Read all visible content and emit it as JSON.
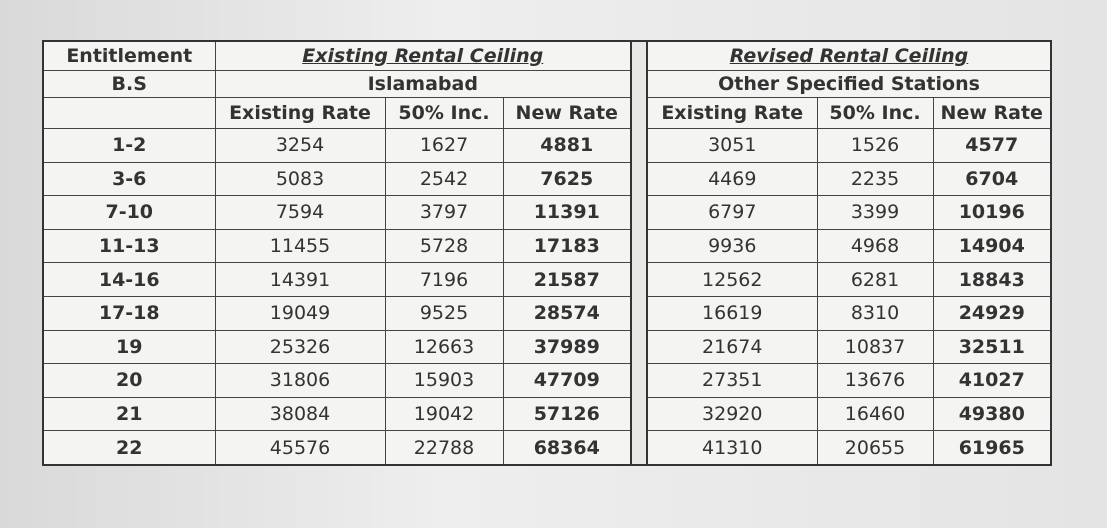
{
  "header": {
    "entitlement": "Entitlement",
    "bs": "B.S",
    "left": {
      "title": "Existing Rental Ceiling",
      "station": "Islamabad",
      "columns": [
        "Existing Rate",
        "50% Inc.",
        "New Rate"
      ]
    },
    "right": {
      "title": "Revised Rental Ceiling",
      "station": "Other Specified Stations",
      "columns": [
        "Existing Rate",
        "50% Inc.",
        "New Rate"
      ]
    }
  },
  "rows": [
    [
      "1-2",
      3254,
      1627,
      4881,
      3051,
      1526,
      4577
    ],
    [
      "3-6",
      5083,
      2542,
      7625,
      4469,
      2235,
      6704
    ],
    [
      "7-10",
      7594,
      3797,
      11391,
      6797,
      3399,
      10196
    ],
    [
      "11-13",
      11455,
      5728,
      17183,
      9936,
      4968,
      14904
    ],
    [
      "14-16",
      14391,
      7196,
      21587,
      12562,
      6281,
      18843
    ],
    [
      "17-18",
      19049,
      9525,
      28574,
      16619,
      8310,
      24929
    ],
    [
      "19",
      25326,
      12663,
      37989,
      21674,
      10837,
      32511
    ],
    [
      "20",
      31806,
      15903,
      47709,
      27351,
      13676,
      41027
    ],
    [
      "21",
      38084,
      19042,
      57126,
      32920,
      16460,
      49380
    ],
    [
      "22",
      45576,
      22788,
      68364,
      41310,
      20655,
      61965
    ]
  ]
}
